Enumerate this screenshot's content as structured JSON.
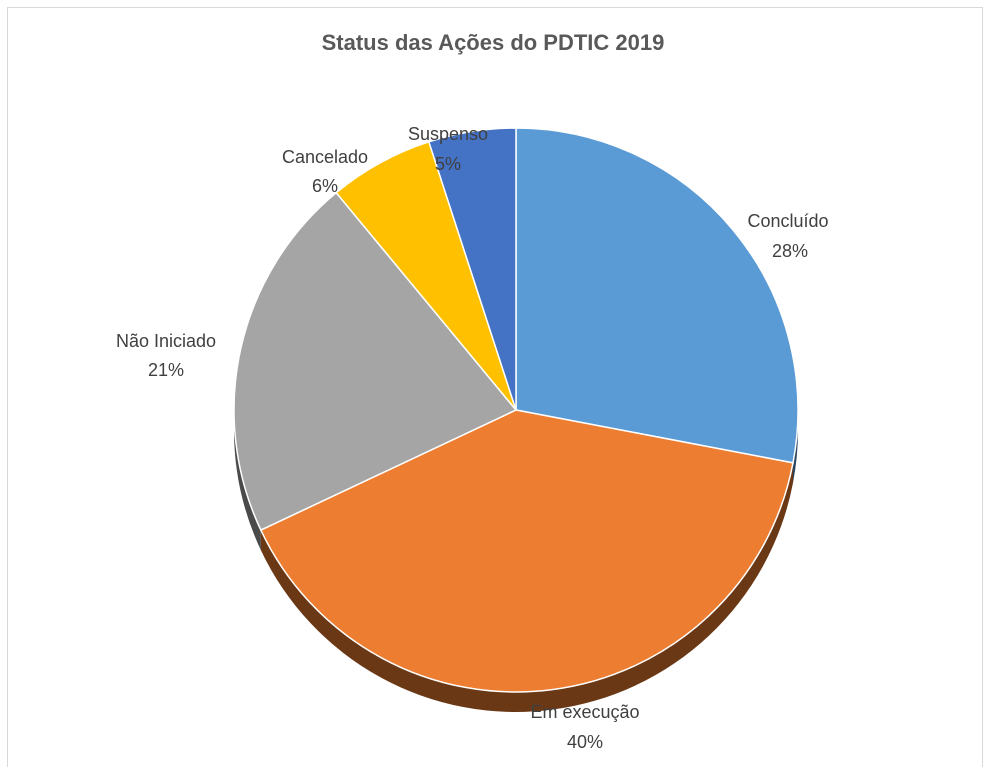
{
  "chart_data": {
    "type": "pie",
    "title": "Status das Ações do PDTIC 2019",
    "slices": [
      {
        "label": "Concluído",
        "value": 28,
        "pct_label": "28%",
        "color": "#5b9bd5"
      },
      {
        "label": "Em execução",
        "value": 40,
        "pct_label": "40%",
        "color": "#ed7d31"
      },
      {
        "label": "Não Iniciado",
        "value": 21,
        "pct_label": "21%",
        "color": "#a5a5a5"
      },
      {
        "label": "Cancelado",
        "value": 6,
        "pct_label": "6%",
        "color": "#ffc000"
      },
      {
        "label": "Suspenso",
        "value": 5,
        "pct_label": "5%",
        "color": "#4472c4"
      }
    ],
    "start": "12 o'clock",
    "direction": "clockwise",
    "legend": "none",
    "style": "3d-tilted"
  }
}
